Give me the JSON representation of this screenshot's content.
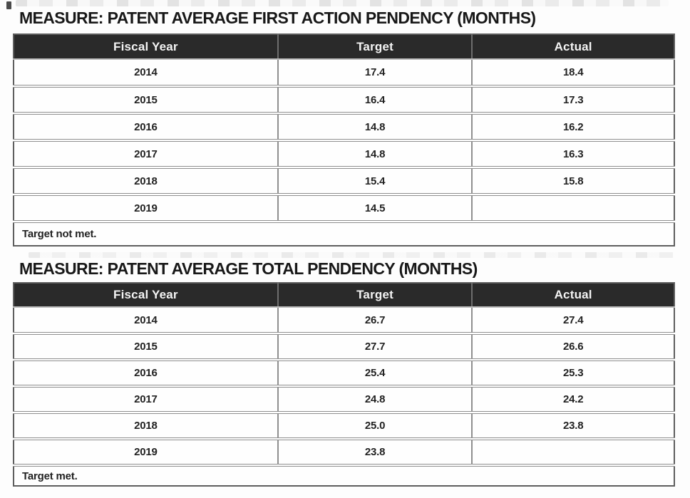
{
  "tables": [
    {
      "title": "MEASURE: PATENT AVERAGE FIRST ACTION PENDENCY (MONTHS)",
      "columns": [
        "Fiscal Year",
        "Target",
        "Actual"
      ],
      "rows": [
        [
          "2014",
          "17.4",
          "18.4"
        ],
        [
          "2015",
          "16.4",
          "17.3"
        ],
        [
          "2016",
          "14.8",
          "16.2"
        ],
        [
          "2017",
          "14.8",
          "16.3"
        ],
        [
          "2018",
          "15.4",
          "15.8"
        ],
        [
          "2019",
          "14.5",
          ""
        ]
      ],
      "footnote": "Target not met."
    },
    {
      "title": "MEASURE: PATENT AVERAGE TOTAL PENDENCY (MONTHS)",
      "columns": [
        "Fiscal Year",
        "Target",
        "Actual"
      ],
      "rows": [
        [
          "2014",
          "26.7",
          "27.4"
        ],
        [
          "2015",
          "27.7",
          "26.6"
        ],
        [
          "2016",
          "25.4",
          "25.3"
        ],
        [
          "2017",
          "24.8",
          "24.2"
        ],
        [
          "2018",
          "25.0",
          "23.8"
        ],
        [
          "2019",
          "23.8",
          ""
        ]
      ],
      "footnote": "Target met."
    }
  ],
  "colors": {
    "header_bg": "#2a2a2a",
    "header_text": "#f4f4f4",
    "body_text": "#1f1f1f",
    "grid_border": "#8f8f8f",
    "outer_border": "#5e5e5e",
    "page_bg": "#fdfdfd"
  }
}
